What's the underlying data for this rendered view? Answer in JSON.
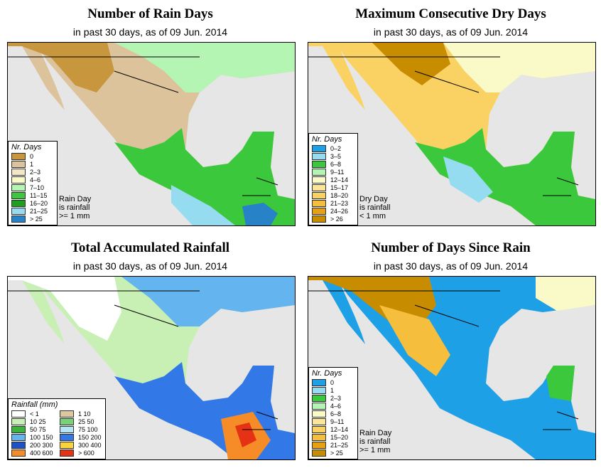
{
  "panels": [
    {
      "title": "Number of Rain Days",
      "subtitle": "in past 30 days, as of  09 Jun. 2014",
      "legend_title": "Nr. Days",
      "legend": [
        {
          "label": "0",
          "color": "#c8963c"
        },
        {
          "label": "1",
          "color": "#dcc39b"
        },
        {
          "label": "2–3",
          "color": "#f5e6c8"
        },
        {
          "label": "4–6",
          "color": "#fafac8"
        },
        {
          "label": "7–10",
          "color": "#b4f5b4"
        },
        {
          "label": "11–15",
          "color": "#3cc83c"
        },
        {
          "label": "16–20",
          "color": "#1ea01e"
        },
        {
          "label": "21–25",
          "color": "#96dcf0"
        },
        {
          "label": "> 25",
          "color": "#2882c8"
        }
      ],
      "note": [
        "Rain Day",
        "is rainfall",
        ">= 1 mm"
      ]
    },
    {
      "title": "Maximum Consecutive Dry Days",
      "subtitle": "in past 30 days, as of  09 Jun. 2014",
      "legend_title": "Nr. Days",
      "legend": [
        {
          "label": "0–2",
          "color": "#1ea0e6"
        },
        {
          "label": "3–5",
          "color": "#96dcf0"
        },
        {
          "label": "6–8",
          "color": "#3cc83c"
        },
        {
          "label": "9–11",
          "color": "#b4f5b4"
        },
        {
          "label": "12–14",
          "color": "#fafac8"
        },
        {
          "label": "15–17",
          "color": "#fae696"
        },
        {
          "label": "18–20",
          "color": "#fad264"
        },
        {
          "label": "21–23",
          "color": "#f5be3c"
        },
        {
          "label": "24–26",
          "color": "#e6a014"
        },
        {
          "label": "> 26",
          "color": "#c88c00"
        }
      ],
      "note": [
        "Dry Day",
        "is rainfall",
        "< 1 mm"
      ]
    },
    {
      "title": "Total Accumulated Rainfall",
      "subtitle": "in past 30 days, as of  09 Jun. 2014",
      "legend_title": "Rainfall (mm)",
      "legend": [
        {
          "label": "< 1",
          "color": "#ffffff"
        },
        {
          "label": "1    10",
          "color": "#dcc8a0"
        },
        {
          "label": "10    25",
          "color": "#c8f0b4"
        },
        {
          "label": "25    50",
          "color": "#78d278"
        },
        {
          "label": "50    75",
          "color": "#3cb43c"
        },
        {
          "label": "75    100",
          "color": "#b4e6f5"
        },
        {
          "label": "100    150",
          "color": "#64b4f0"
        },
        {
          "label": "150    200",
          "color": "#3278e6"
        },
        {
          "label": "200    300",
          "color": "#1e50c8"
        },
        {
          "label": "300    400",
          "color": "#fad23c"
        },
        {
          "label": "400    600",
          "color": "#f58c28"
        },
        {
          "label": "> 600",
          "color": "#e63214"
        }
      ],
      "note": []
    },
    {
      "title": "Number of Days Since Rain",
      "subtitle": "in past 30 days, as of  09 Jun. 2014",
      "legend_title": "Nr. Days",
      "legend": [
        {
          "label": "0",
          "color": "#1ea0e6"
        },
        {
          "label": "1",
          "color": "#96dcf0"
        },
        {
          "label": "2–3",
          "color": "#3cc83c"
        },
        {
          "label": "4–6",
          "color": "#b4f5b4"
        },
        {
          "label": "6–8",
          "color": "#fafac8"
        },
        {
          "label": "9–11",
          "color": "#fae696"
        },
        {
          "label": "12–14",
          "color": "#fad264"
        },
        {
          "label": "15–20",
          "color": "#f5be3c"
        },
        {
          "label": "21–25",
          "color": "#e6a014"
        },
        {
          "label": "> 25",
          "color": "#c88c00"
        }
      ],
      "note": [
        "Rain Day",
        "is rainfall",
        ">= 1 mm"
      ]
    }
  ]
}
